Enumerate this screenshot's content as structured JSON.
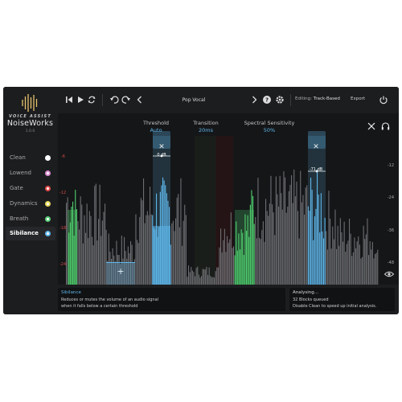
{
  "brand": {
    "top": "VOICE ASSIST",
    "name": "NoiseWorks",
    "version": "1.0.0"
  },
  "sidebar": {
    "items": [
      {
        "label": "Clean",
        "color": "#ffffff",
        "active": false
      },
      {
        "label": "Lowend",
        "color": "#d98ad0",
        "active": false
      },
      {
        "label": "Gate",
        "color": "#e04b4b",
        "active": false
      },
      {
        "label": "Dynamics",
        "color": "#e8d95a",
        "active": false
      },
      {
        "label": "Breath",
        "color": "#5bd07a",
        "active": false
      },
      {
        "label": "Sibilance",
        "color": "#5fb6ea",
        "active": true
      }
    ]
  },
  "toolbar": {
    "preset": "Pop Vocal",
    "editing_label": "Editing:",
    "editing_value": "Track-Based",
    "export_label": "Export"
  },
  "params": {
    "threshold": {
      "label": "Threshold",
      "value": "Auto"
    },
    "transition": {
      "label": "Transition",
      "value": "20ms"
    },
    "sensitivity": {
      "label": "Spectral Sensitivity",
      "value": "50%"
    }
  },
  "axis": {
    "left": [
      "-6",
      "-12",
      "-18",
      "-24"
    ],
    "right": [
      "-12",
      "-24",
      "-36",
      "-48"
    ]
  },
  "handles": [
    {
      "db": "0 dB"
    },
    {
      "db": "-71 dB"
    }
  ],
  "info": {
    "title": "Sibilance",
    "line1": "Reduces or mutes the volume of an audio signal",
    "line2": "when it falls below a certain threshold"
  },
  "status": {
    "title": "Analysing...",
    "line1": "32 Blocks queued",
    "line2": "Disable Clean to speed up initial analysis."
  },
  "colors": {
    "accent": "#5fb6ea",
    "green": "#5bd07a",
    "red": "#e04b4b"
  }
}
